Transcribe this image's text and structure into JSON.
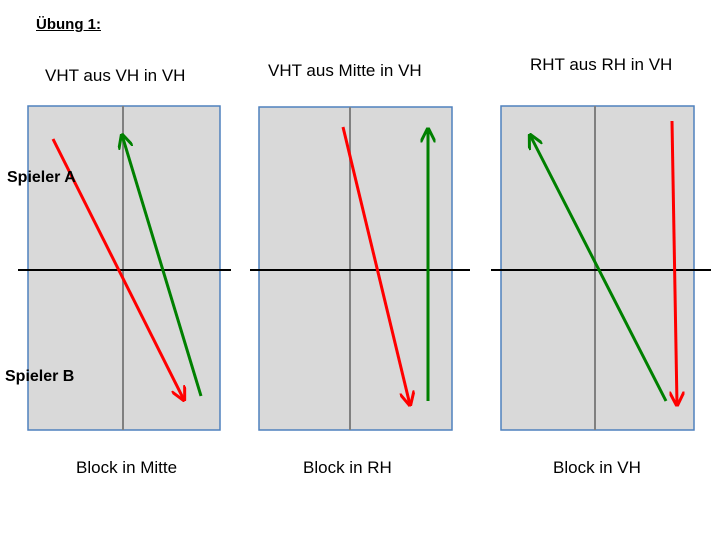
{
  "title": "Übung 1:",
  "players": {
    "a": "Spieler A",
    "b": "Spieler B"
  },
  "panels": [
    {
      "heading": "VHT aus VH in VH",
      "footer": "Block in Mitte"
    },
    {
      "heading": "VHT aus Mitte in VH",
      "footer": "Block in RH"
    },
    {
      "heading": "RHT aus RH in VH",
      "footer": "Block in VH"
    }
  ],
  "colors": {
    "court_fill": "#d9d9d9",
    "court_border": "#4f81bd",
    "center_line": "#808080",
    "net_line": "#000000",
    "arrow_red": "#ff0000",
    "arrow_green": "#008000"
  }
}
